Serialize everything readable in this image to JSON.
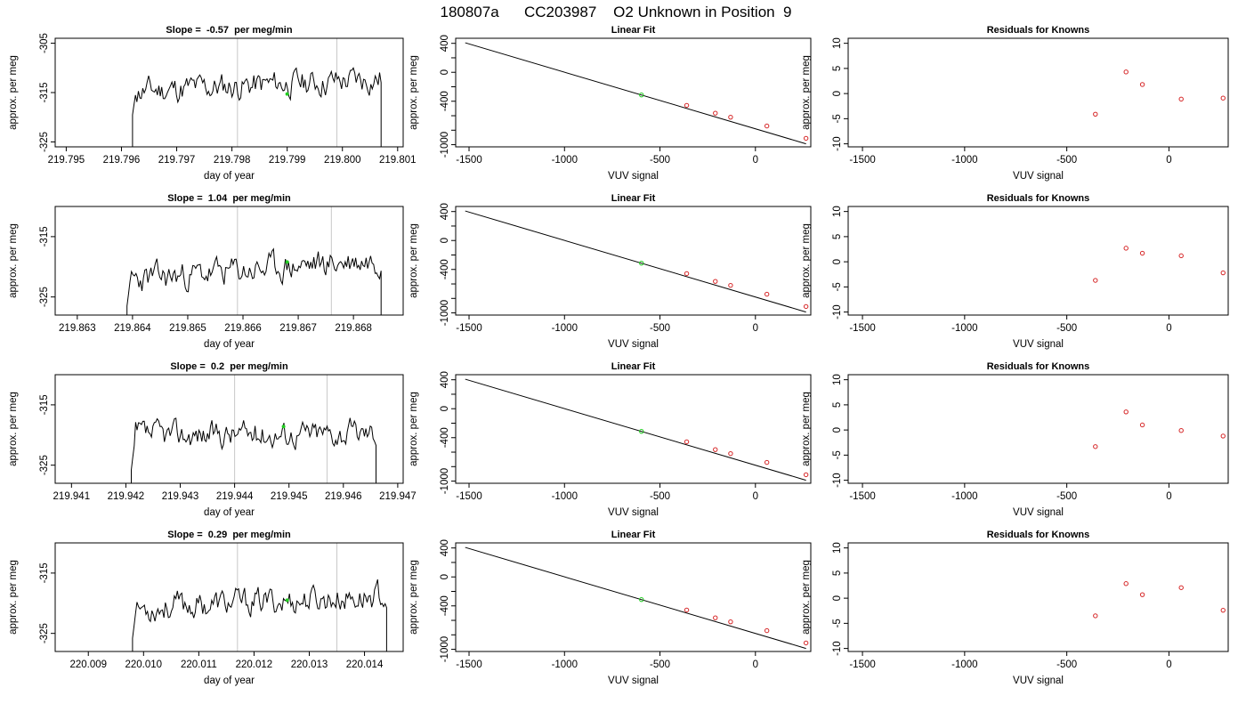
{
  "header": {
    "title": "180807a      CC203987    O2 Unknown in Position  9"
  },
  "colors": {
    "known": "#d62728",
    "unknown": "#22cc22",
    "trace": "#000000",
    "vline": "#c8c8c8"
  },
  "chart_data": [
    {
      "type": "line",
      "row": 0,
      "col": 0,
      "title": "Slope =  -0.57  per meg/min",
      "xlabel": "day of year",
      "ylabel": "approx. per meg",
      "xlim": [
        219.7948,
        219.8011
      ],
      "ylim": [
        -326,
        -304
      ],
      "xticks": [
        219.795,
        219.796,
        219.797,
        219.798,
        219.799,
        219.8,
        219.801
      ],
      "xtick_labels": [
        "219.795",
        "219.796",
        "219.797",
        "219.798",
        "219.799",
        "219.800",
        "219.801"
      ],
      "yticks": [
        -305,
        -315,
        -325
      ],
      "ytick_labels": [
        "-305",
        "-315",
        "-325"
      ],
      "trace_x": [
        219.7962,
        219.8007
      ],
      "trace_mean": -313.5,
      "trace_amp": 2.8,
      "trace_ramp": 2.5,
      "trace_seed": 11,
      "vlines": [
        219.7981,
        219.7999
      ],
      "marker": [
        219.799,
        -315.3
      ]
    },
    {
      "type": "scatter",
      "row": 0,
      "col": 1,
      "title": "Linear Fit",
      "xlabel": "VUV signal",
      "ylabel": "approx. per meg",
      "xlim": [
        -1570,
        290
      ],
      "ylim": [
        -1030,
        470
      ],
      "xticks": [
        -1500,
        -1000,
        -500,
        0
      ],
      "xtick_labels": [
        "-1500",
        "-1000",
        "-500",
        "0"
      ],
      "yticks": [
        400,
        0,
        -400,
        -1000
      ],
      "ytick_labels": [
        "400",
        "0",
        "-400",
        "-1000"
      ],
      "yminor": [
        200,
        -200,
        -600,
        -800
      ],
      "line": [
        [
          -1520,
          408
        ],
        [
          265,
          -988
        ]
      ],
      "known_points": [
        [
          -360,
          -457
        ],
        [
          -210,
          -565
        ],
        [
          -130,
          -620
        ],
        [
          60,
          -742
        ],
        [
          265,
          -912
        ]
      ],
      "unknown_points": [
        [
          -597,
          -313
        ]
      ]
    },
    {
      "type": "scatter",
      "row": 0,
      "col": 2,
      "title": "Residuals for Knowns",
      "xlabel": "VUV signal",
      "ylabel": "approx. per meg",
      "xlim": [
        -1570,
        290
      ],
      "ylim": [
        -10.6,
        11
      ],
      "xticks": [
        -1500,
        -1000,
        -500,
        0
      ],
      "xtick_labels": [
        "-1500",
        "-1000",
        "-500",
        "0"
      ],
      "yticks": [
        10,
        5,
        0,
        -5,
        -10
      ],
      "ytick_labels": [
        "10",
        "5",
        "0",
        "-5",
        "-10"
      ],
      "points": [
        [
          -360,
          -4.1
        ],
        [
          -210,
          4.3
        ],
        [
          -130,
          1.8
        ],
        [
          60,
          -1.1
        ],
        [
          265,
          -0.9
        ]
      ]
    },
    {
      "type": "line",
      "row": 1,
      "col": 0,
      "title": "Slope =  1.04  per meg/min",
      "xlabel": "day of year",
      "ylabel": "approx. per meg",
      "xlim": [
        219.8626,
        219.8689
      ],
      "ylim": [
        -328,
        -310
      ],
      "xticks": [
        219.863,
        219.864,
        219.865,
        219.866,
        219.867,
        219.868
      ],
      "xtick_labels": [
        "219.863",
        "219.864",
        "219.865",
        "219.866",
        "219.867",
        "219.868"
      ],
      "yticks": [
        -315,
        -325
      ],
      "ytick_labels": [
        "-315",
        "-325"
      ],
      "trace_x": [
        219.8639,
        219.8685
      ],
      "trace_mean": -320.5,
      "trace_amp": 2.4,
      "trace_ramp": 3.5,
      "trace_seed": 23,
      "vlines": [
        219.8659,
        219.8676
      ],
      "marker": [
        219.8668,
        -319.2
      ]
    },
    {
      "type": "scatter",
      "row": 1,
      "col": 1,
      "title": "Linear Fit",
      "xlabel": "VUV signal",
      "ylabel": "approx. per meg",
      "xlim": [
        -1570,
        290
      ],
      "ylim": [
        -1030,
        470
      ],
      "xticks": [
        -1500,
        -1000,
        -500,
        0
      ],
      "xtick_labels": [
        "-1500",
        "-1000",
        "-500",
        "0"
      ],
      "yticks": [
        400,
        0,
        -400,
        -1000
      ],
      "ytick_labels": [
        "400",
        "0",
        "-400",
        "-1000"
      ],
      "yminor": [
        200,
        -200,
        -600,
        -800
      ],
      "line": [
        [
          -1520,
          408
        ],
        [
          265,
          -988
        ]
      ],
      "known_points": [
        [
          -360,
          -457
        ],
        [
          -210,
          -565
        ],
        [
          -130,
          -620
        ],
        [
          60,
          -742
        ],
        [
          265,
          -912
        ]
      ],
      "unknown_points": [
        [
          -597,
          -313
        ]
      ]
    },
    {
      "type": "scatter",
      "row": 1,
      "col": 2,
      "title": "Residuals for Knowns",
      "xlabel": "VUV signal",
      "ylabel": "approx. per meg",
      "xlim": [
        -1570,
        290
      ],
      "ylim": [
        -10.6,
        11
      ],
      "xticks": [
        -1500,
        -1000,
        -500,
        0
      ],
      "xtick_labels": [
        "-1500",
        "-1000",
        "-500",
        "0"
      ],
      "yticks": [
        10,
        5,
        0,
        -5,
        -10
      ],
      "ytick_labels": [
        "10",
        "5",
        "0",
        "-5",
        "-10"
      ],
      "points": [
        [
          -360,
          -3.7
        ],
        [
          -210,
          2.7
        ],
        [
          -130,
          1.7
        ],
        [
          60,
          1.2
        ],
        [
          265,
          -2.2
        ]
      ]
    },
    {
      "type": "line",
      "row": 2,
      "col": 0,
      "title": "Slope =  0.2  per meg/min",
      "xlabel": "day of year",
      "ylabel": "approx. per meg",
      "xlim": [
        219.9407,
        219.9471
      ],
      "ylim": [
        -328,
        -310
      ],
      "xticks": [
        219.941,
        219.942,
        219.943,
        219.944,
        219.945,
        219.946,
        219.947
      ],
      "xtick_labels": [
        "219.941",
        "219.942",
        "219.943",
        "219.944",
        "219.945",
        "219.946",
        "219.947"
      ],
      "yticks": [
        -315,
        -325
      ],
      "ytick_labels": [
        "-315",
        "-325"
      ],
      "trace_x": [
        219.9421,
        219.9466
      ],
      "trace_mean": -319.8,
      "trace_amp": 2.2,
      "trace_ramp": 0.5,
      "trace_seed": 37,
      "vlines": [
        219.944,
        219.9457
      ],
      "marker": [
        219.9449,
        -318.6
      ]
    },
    {
      "type": "scatter",
      "row": 2,
      "col": 1,
      "title": "Linear Fit",
      "xlabel": "VUV signal",
      "ylabel": "approx. per meg",
      "xlim": [
        -1570,
        290
      ],
      "ylim": [
        -1030,
        470
      ],
      "xticks": [
        -1500,
        -1000,
        -500,
        0
      ],
      "xtick_labels": [
        "-1500",
        "-1000",
        "-500",
        "0"
      ],
      "yticks": [
        400,
        0,
        -400,
        -1000
      ],
      "ytick_labels": [
        "400",
        "0",
        "-400",
        "-1000"
      ],
      "yminor": [
        200,
        -200,
        -600,
        -800
      ],
      "line": [
        [
          -1520,
          408
        ],
        [
          265,
          -988
        ]
      ],
      "known_points": [
        [
          -360,
          -457
        ],
        [
          -210,
          -565
        ],
        [
          -130,
          -620
        ],
        [
          60,
          -742
        ],
        [
          265,
          -912
        ]
      ],
      "unknown_points": [
        [
          -597,
          -313
        ]
      ]
    },
    {
      "type": "scatter",
      "row": 2,
      "col": 2,
      "title": "Residuals for Knowns",
      "xlabel": "VUV signal",
      "ylabel": "approx. per meg",
      "xlim": [
        -1570,
        290
      ],
      "ylim": [
        -10.6,
        11
      ],
      "xticks": [
        -1500,
        -1000,
        -500,
        0
      ],
      "xtick_labels": [
        "-1500",
        "-1000",
        "-500",
        "0"
      ],
      "yticks": [
        10,
        5,
        0,
        -5,
        -10
      ],
      "ytick_labels": [
        "10",
        "5",
        "0",
        "-5",
        "-10"
      ],
      "points": [
        [
          -360,
          -3.3
        ],
        [
          -210,
          3.6
        ],
        [
          -130,
          1.0
        ],
        [
          60,
          -0.1
        ],
        [
          265,
          -1.2
        ]
      ]
    },
    {
      "type": "line",
      "row": 3,
      "col": 0,
      "title": "Slope =  0.29  per meg/min",
      "xlabel": "day of year",
      "ylabel": "approx. per meg",
      "xlim": [
        220.0084,
        220.0147
      ],
      "ylim": [
        -328,
        -310
      ],
      "xticks": [
        220.009,
        220.01,
        220.011,
        220.012,
        220.013,
        220.014
      ],
      "xtick_labels": [
        "220.009",
        "220.010",
        "220.011",
        "220.012",
        "220.013",
        "220.014"
      ],
      "yticks": [
        -315,
        -325
      ],
      "ytick_labels": [
        "-315",
        "-325"
      ],
      "trace_x": [
        220.0098,
        220.0144
      ],
      "trace_mean": -319.8,
      "trace_amp": 2.3,
      "trace_ramp": 2.0,
      "trace_seed": 53,
      "vlines": [
        220.0117,
        220.0135
      ],
      "marker": [
        220.0126,
        -319.5
      ]
    },
    {
      "type": "scatter",
      "row": 3,
      "col": 1,
      "title": "Linear Fit",
      "xlabel": "VUV signal",
      "ylabel": "approx. per meg",
      "xlim": [
        -1570,
        290
      ],
      "ylim": [
        -1030,
        470
      ],
      "xticks": [
        -1500,
        -1000,
        -500,
        0
      ],
      "xtick_labels": [
        "-1500",
        "-1000",
        "-500",
        "0"
      ],
      "yticks": [
        400,
        0,
        -400,
        -1000
      ],
      "ytick_labels": [
        "400",
        "0",
        "-400",
        "-1000"
      ],
      "yminor": [
        200,
        -200,
        -600,
        -800
      ],
      "line": [
        [
          -1520,
          408
        ],
        [
          265,
          -988
        ]
      ],
      "known_points": [
        [
          -360,
          -457
        ],
        [
          -210,
          -565
        ],
        [
          -130,
          -620
        ],
        [
          60,
          -742
        ],
        [
          265,
          -912
        ]
      ],
      "unknown_points": [
        [
          -597,
          -313
        ]
      ]
    },
    {
      "type": "scatter",
      "row": 3,
      "col": 2,
      "title": "Residuals for Knowns",
      "xlabel": "VUV signal",
      "ylabel": "approx. per meg",
      "xlim": [
        -1570,
        290
      ],
      "ylim": [
        -10.6,
        11
      ],
      "xticks": [
        -1500,
        -1000,
        -500,
        0
      ],
      "xtick_labels": [
        "-1500",
        "-1000",
        "-500",
        "0"
      ],
      "yticks": [
        10,
        5,
        0,
        -5,
        -10
      ],
      "ytick_labels": [
        "10",
        "5",
        "0",
        "-5",
        "-10"
      ],
      "points": [
        [
          -360,
          -3.5
        ],
        [
          -210,
          2.9
        ],
        [
          -130,
          0.7
        ],
        [
          60,
          2.1
        ],
        [
          265,
          -2.4
        ]
      ]
    }
  ]
}
